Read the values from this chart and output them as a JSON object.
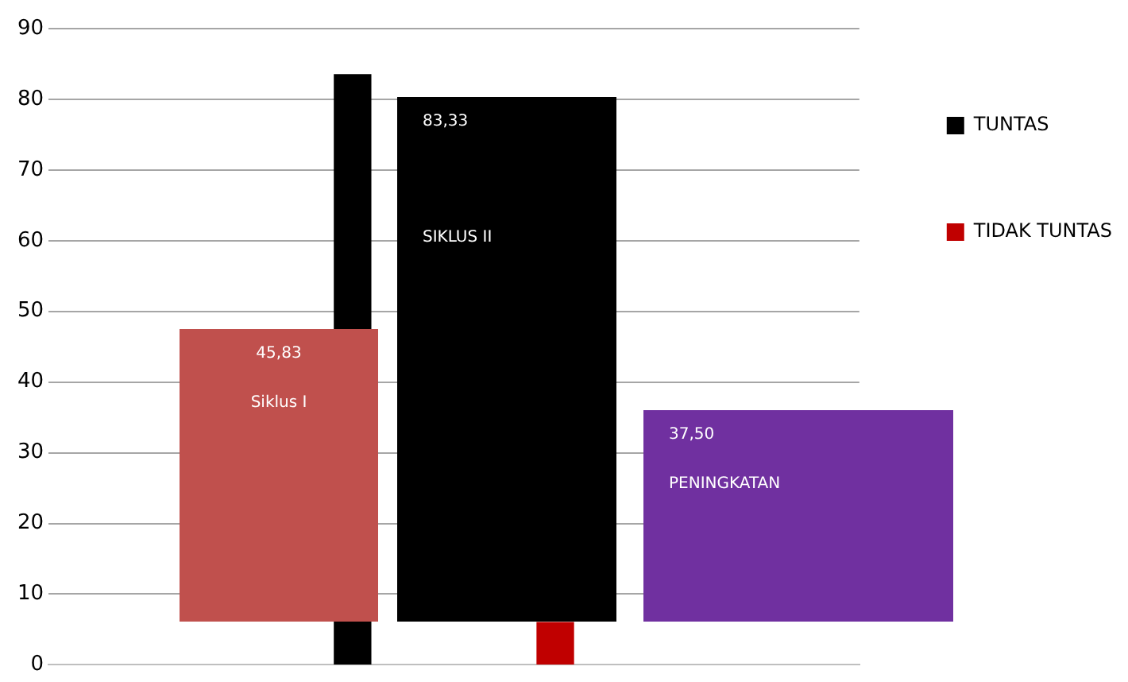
{
  "chart_data": {
    "type": "bar",
    "categories": [
      null,
      null,
      null,
      null
    ],
    "series": [
      {
        "name": "TUNTAS",
        "color": "#000000",
        "values": [
          null,
          83.5,
          null,
          null
        ]
      },
      {
        "name": "TIDAK TUNTAS",
        "color": "#c00000",
        "values": [
          null,
          null,
          6,
          null
        ]
      }
    ],
    "ylim": [
      0,
      90
    ],
    "yticks": [
      0,
      10,
      20,
      30,
      40,
      50,
      60,
      70,
      80,
      90
    ],
    "grid": "y",
    "legend": "right",
    "tick_labels": "y",
    "annotations": [
      "45,83",
      "Siklus I",
      "83,33",
      "SIKLUS II",
      "37,50",
      "PENINGKATAN"
    ]
  }
}
